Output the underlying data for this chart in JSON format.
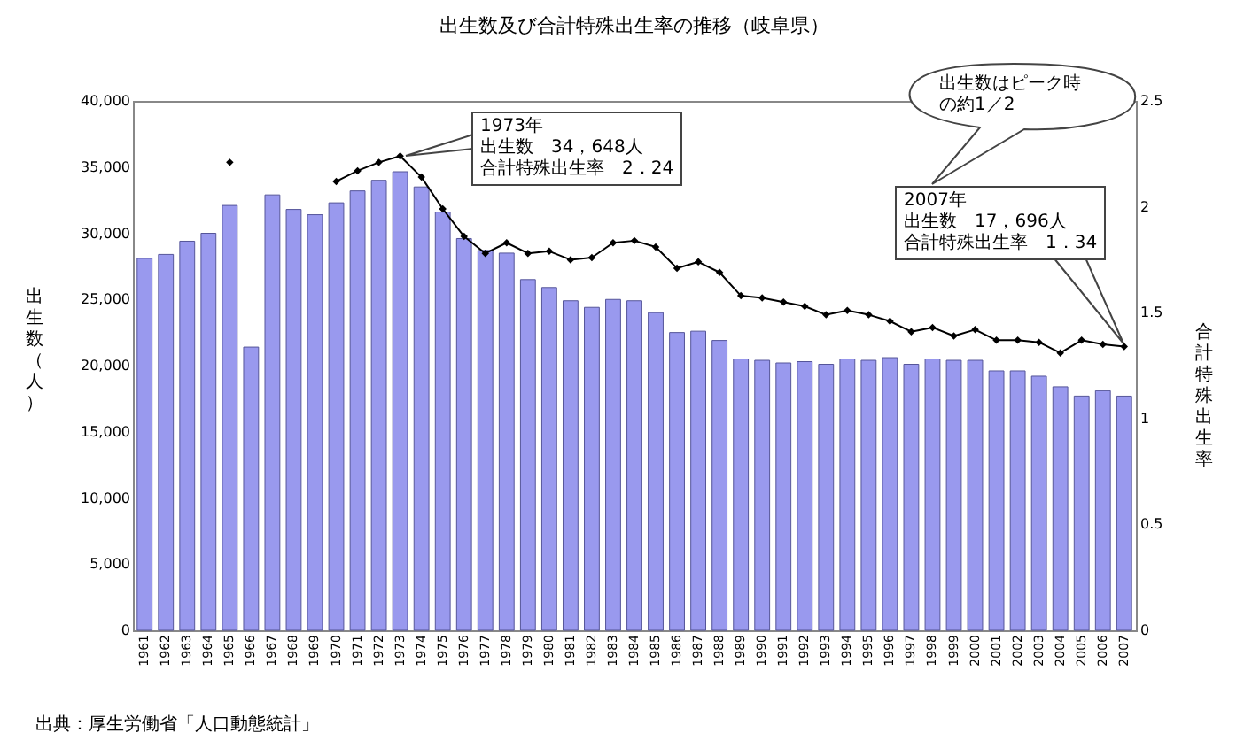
{
  "chart_data": {
    "type": "bar",
    "title": "出生数及び合計特殊出生率の推移（岐阜県）",
    "ylabel": "出生数（人）",
    "y2label": "合計特殊出生率",
    "categories": [
      "1961",
      "1962",
      "1963",
      "1964",
      "1965",
      "1966",
      "1967",
      "1968",
      "1969",
      "1970",
      "1971",
      "1972",
      "1973",
      "1974",
      "1975",
      "1976",
      "1977",
      "1978",
      "1979",
      "1980",
      "1981",
      "1982",
      "1983",
      "1984",
      "1985",
      "1986",
      "1987",
      "1988",
      "1989",
      "1990",
      "1991",
      "1992",
      "1993",
      "1994",
      "1995",
      "1996",
      "1997",
      "1998",
      "1999",
      "2000",
      "2001",
      "2002",
      "2003",
      "2004",
      "2005",
      "2006",
      "2007"
    ],
    "series": [
      {
        "color": "#9999ee",
        "values": [
          28100,
          28400,
          29400,
          30000,
          32100,
          21400,
          32900,
          31800,
          31400,
          32300,
          33200,
          34000,
          34648,
          33500,
          31600,
          29600,
          28700,
          28500,
          26500,
          25900,
          24900,
          24400,
          25000,
          24900,
          24000,
          22500,
          22600,
          21900,
          20500,
          20400,
          20200,
          20300,
          20100,
          20500,
          20400,
          20600,
          20100,
          20500,
          20400,
          20400,
          19600,
          19600,
          19200,
          18400,
          17700,
          18100,
          17696
        ]
      },
      {
        "type": "line",
        "axis": "y2",
        "color": "#000000",
        "values": [
          null,
          null,
          null,
          null,
          2.21,
          null,
          null,
          null,
          null,
          2.12,
          2.17,
          2.21,
          2.24,
          2.14,
          1.99,
          1.86,
          1.78,
          1.83,
          1.78,
          1.79,
          1.75,
          1.76,
          1.83,
          1.84,
          1.81,
          1.71,
          1.74,
          1.69,
          1.58,
          1.57,
          1.55,
          1.53,
          1.49,
          1.51,
          1.49,
          1.46,
          1.41,
          1.43,
          1.39,
          1.42,
          1.37,
          1.37,
          1.36,
          1.31,
          1.37,
          1.35,
          1.34
        ]
      }
    ],
    "marker": "diamond",
    "ylim": [
      0,
      40000
    ],
    "yticks": [
      0,
      {
        "value": 5000,
        "label": "5,000"
      },
      {
        "value": 10000,
        "label": "10,000"
      },
      {
        "value": 15000,
        "label": "15,000"
      },
      {
        "value": 20000,
        "label": "20,000"
      },
      {
        "value": 25000,
        "label": "25,000"
      },
      {
        "value": 30000,
        "label": "30,000"
      },
      {
        "value": 35000,
        "label": "35,000"
      },
      {
        "value": 40000,
        "label": "40,000"
      }
    ],
    "y2lim": [
      0,
      2.5
    ],
    "y2ticks": [
      0,
      0.5,
      1,
      1.5,
      2,
      2.5
    ],
    "annotations": [
      "1973年",
      "出生数　34，648人",
      "合計特殊出生率　2．24",
      "出生数はピーク時の約1／2",
      "2007年",
      "出生数　17，696人",
      "合計特殊出生率　1．34",
      "出典：厚生労働省「人口動態統計」"
    ]
  }
}
